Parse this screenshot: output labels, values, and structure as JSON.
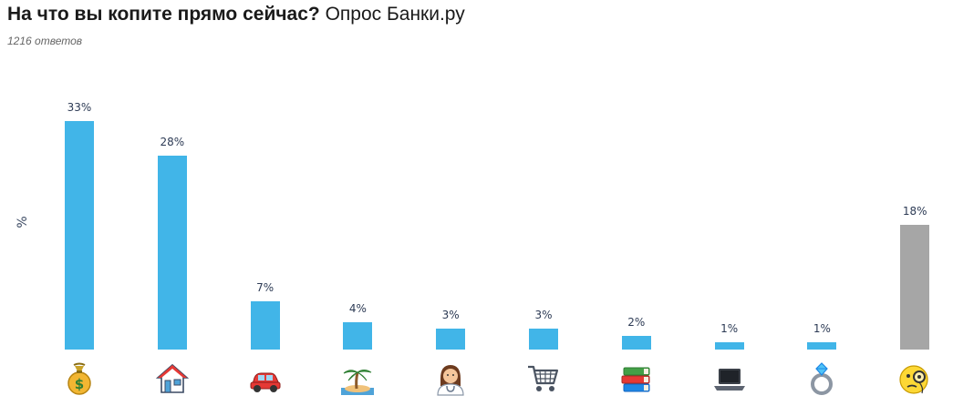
{
  "title_bold": "На что вы копите прямо сейчас?",
  "title_rest": "Опрос Банки.ру",
  "subtitle": "1216 ответов",
  "colors": {
    "bar": "#41b5e8",
    "bar_other": "#a6a6a6",
    "label": "#2d3b55"
  },
  "chart_data": {
    "type": "bar",
    "title": "На что вы копите прямо сейчас? Опрос Банки.ру",
    "subtitle": "1216 ответов",
    "ylabel": "%",
    "xlabel": "",
    "categories": [
      "money-bag-icon",
      "house-icon",
      "car-icon",
      "island-icon",
      "doctor-icon",
      "shopping-cart-icon",
      "books-icon",
      "laptop-icon",
      "ring-icon",
      "monocle-face-icon"
    ],
    "values": [
      33,
      28,
      7,
      4,
      3,
      3,
      2,
      1,
      1,
      18
    ],
    "value_labels": [
      "33%",
      "28%",
      "7%",
      "4%",
      "3%",
      "3%",
      "2%",
      "1%",
      "1%",
      "18%"
    ],
    "bar_colors": [
      "#41b5e8",
      "#41b5e8",
      "#41b5e8",
      "#41b5e8",
      "#41b5e8",
      "#41b5e8",
      "#41b5e8",
      "#41b5e8",
      "#41b5e8",
      "#a6a6a6"
    ],
    "grid": false,
    "legend": "none"
  }
}
